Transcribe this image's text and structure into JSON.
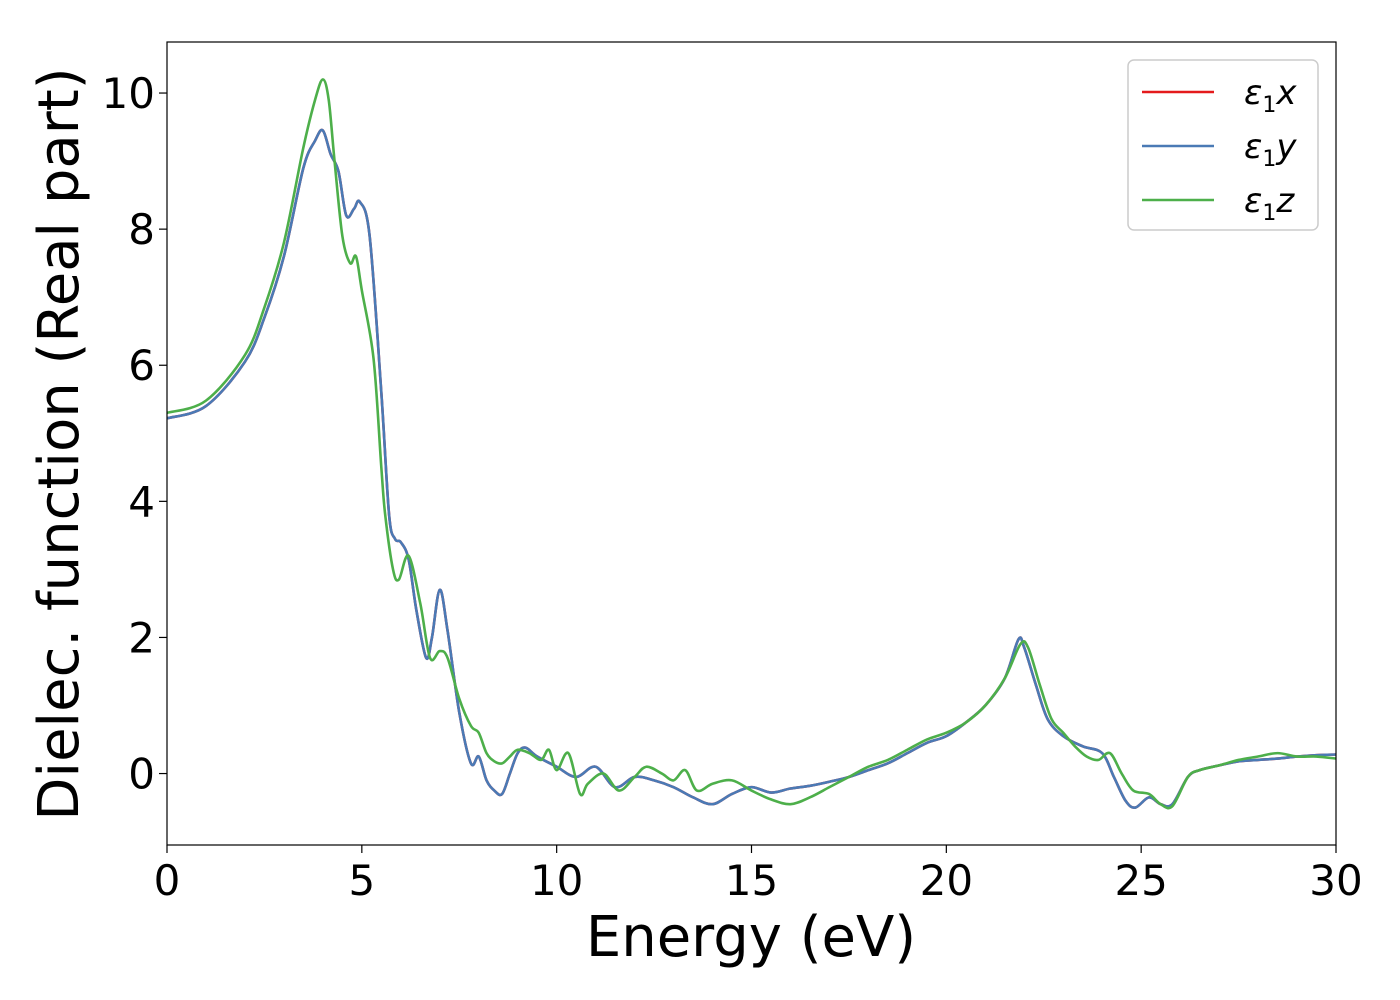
{
  "chart_data": {
    "type": "line",
    "xlabel": "Energy (eV)",
    "ylabel": "Dielec. function (Real part)",
    "xlim": [
      0,
      30
    ],
    "ylim": [
      -1.05,
      10.75
    ],
    "xticks": [
      0,
      5,
      10,
      15,
      20,
      25,
      30
    ],
    "yticks": [
      0,
      2,
      4,
      6,
      8,
      10
    ],
    "grid": false,
    "legend_position": "top-right",
    "series": [
      {
        "name": "ε1x",
        "legend_base": "ε",
        "legend_sub": "1",
        "legend_var": "x",
        "color": "#e41a1c",
        "x": [
          0,
          1,
          2,
          2.5,
          3,
          3.5,
          3.8,
          4.0,
          4.2,
          4.4,
          4.6,
          4.8,
          4.95,
          5.2,
          5.5,
          5.7,
          5.85,
          6.0,
          6.2,
          6.4,
          6.65,
          6.8,
          7.0,
          7.2,
          7.5,
          7.8,
          8.0,
          8.2,
          8.4,
          8.6,
          8.8,
          9.0,
          9.2,
          9.5,
          10.0,
          10.5,
          11.0,
          11.5,
          12.0,
          12.5,
          13.0,
          13.5,
          14.0,
          14.5,
          15.0,
          15.5,
          16.0,
          16.5,
          17.0,
          17.5,
          18.0,
          18.5,
          19.0,
          19.5,
          20.0,
          20.5,
          21.0,
          21.5,
          21.85,
          22.0,
          22.3,
          22.6,
          23.0,
          23.5,
          24.0,
          24.3,
          24.6,
          24.85,
          25.2,
          25.5,
          25.8,
          26.2,
          26.5,
          27.0,
          27.5,
          28.0,
          28.5,
          29.0,
          29.5,
          30.0
        ],
        "y": [
          5.22,
          5.4,
          6.05,
          6.7,
          7.6,
          8.9,
          9.3,
          9.45,
          9.1,
          8.85,
          8.2,
          8.3,
          8.4,
          7.9,
          5.6,
          3.8,
          3.45,
          3.4,
          3.15,
          2.4,
          1.7,
          2.0,
          2.7,
          2.1,
          0.9,
          0.15,
          0.25,
          -0.1,
          -0.25,
          -0.3,
          0.0,
          0.3,
          0.38,
          0.25,
          0.1,
          -0.05,
          0.1,
          -0.2,
          -0.05,
          -0.1,
          -0.2,
          -0.35,
          -0.45,
          -0.3,
          -0.2,
          -0.28,
          -0.22,
          -0.18,
          -0.12,
          -0.05,
          0.05,
          0.15,
          0.3,
          0.45,
          0.55,
          0.75,
          1.0,
          1.4,
          1.97,
          1.85,
          1.3,
          0.8,
          0.55,
          0.4,
          0.3,
          -0.05,
          -0.4,
          -0.5,
          -0.35,
          -0.45,
          -0.45,
          -0.05,
          0.05,
          0.12,
          0.18,
          0.2,
          0.22,
          0.25,
          0.27,
          0.28
        ]
      },
      {
        "name": "ε1y",
        "legend_base": "ε",
        "legend_sub": "1",
        "legend_var": "y",
        "color": "#4a7ab5",
        "x": [
          0,
          1,
          2,
          2.5,
          3,
          3.5,
          3.8,
          4.0,
          4.2,
          4.4,
          4.6,
          4.8,
          4.95,
          5.2,
          5.5,
          5.7,
          5.85,
          6.0,
          6.2,
          6.4,
          6.65,
          6.8,
          7.0,
          7.2,
          7.5,
          7.8,
          8.0,
          8.2,
          8.4,
          8.6,
          8.8,
          9.0,
          9.2,
          9.5,
          10.0,
          10.5,
          11.0,
          11.5,
          12.0,
          12.5,
          13.0,
          13.5,
          14.0,
          14.5,
          15.0,
          15.5,
          16.0,
          16.5,
          17.0,
          17.5,
          18.0,
          18.5,
          19.0,
          19.5,
          20.0,
          20.5,
          21.0,
          21.5,
          21.85,
          22.0,
          22.3,
          22.6,
          23.0,
          23.5,
          24.0,
          24.3,
          24.6,
          24.85,
          25.2,
          25.5,
          25.8,
          26.2,
          26.5,
          27.0,
          27.5,
          28.0,
          28.5,
          29.0,
          29.5,
          30.0
        ],
        "y": [
          5.22,
          5.4,
          6.05,
          6.7,
          7.6,
          8.9,
          9.3,
          9.45,
          9.1,
          8.85,
          8.2,
          8.3,
          8.4,
          7.9,
          5.6,
          3.8,
          3.45,
          3.4,
          3.15,
          2.4,
          1.7,
          2.0,
          2.7,
          2.1,
          0.9,
          0.15,
          0.25,
          -0.1,
          -0.25,
          -0.3,
          0.0,
          0.3,
          0.38,
          0.25,
          0.1,
          -0.05,
          0.1,
          -0.2,
          -0.05,
          -0.1,
          -0.2,
          -0.35,
          -0.45,
          -0.3,
          -0.2,
          -0.28,
          -0.22,
          -0.18,
          -0.12,
          -0.05,
          0.05,
          0.15,
          0.3,
          0.45,
          0.55,
          0.75,
          1.0,
          1.4,
          1.97,
          1.85,
          1.3,
          0.8,
          0.55,
          0.4,
          0.3,
          -0.05,
          -0.4,
          -0.5,
          -0.35,
          -0.45,
          -0.45,
          -0.05,
          0.05,
          0.12,
          0.18,
          0.2,
          0.22,
          0.25,
          0.27,
          0.28
        ]
      },
      {
        "name": "ε1z",
        "legend_base": "ε",
        "legend_sub": "1",
        "legend_var": "z",
        "color": "#4daf4a",
        "x": [
          0,
          1,
          2,
          2.5,
          3,
          3.5,
          3.8,
          4.0,
          4.15,
          4.3,
          4.5,
          4.7,
          4.85,
          5.0,
          5.3,
          5.5,
          5.6,
          5.8,
          5.95,
          6.2,
          6.5,
          6.75,
          7.0,
          7.2,
          7.5,
          7.8,
          8.0,
          8.2,
          8.4,
          8.6,
          8.8,
          9.0,
          9.3,
          9.6,
          9.8,
          10.0,
          10.3,
          10.6,
          10.8,
          11.2,
          11.6,
          12.0,
          12.3,
          12.7,
          13.0,
          13.3,
          13.6,
          14.0,
          14.5,
          15.0,
          15.5,
          16.0,
          16.5,
          17.0,
          17.5,
          18.0,
          18.5,
          19.0,
          19.5,
          20.0,
          20.5,
          21.0,
          21.5,
          21.9,
          22.1,
          22.4,
          22.7,
          23.0,
          23.3,
          23.6,
          23.9,
          24.2,
          24.5,
          24.8,
          25.2,
          25.5,
          25.8,
          26.2,
          26.5,
          27.0,
          27.5,
          28.0,
          28.5,
          29.0,
          29.5,
          30.0
        ],
        "y": [
          5.3,
          5.48,
          6.15,
          6.85,
          7.8,
          9.2,
          9.9,
          10.2,
          9.9,
          9.0,
          7.9,
          7.5,
          7.6,
          7.1,
          6.1,
          4.5,
          3.8,
          3.0,
          2.85,
          3.2,
          2.5,
          1.7,
          1.8,
          1.7,
          1.1,
          0.7,
          0.6,
          0.3,
          0.18,
          0.15,
          0.25,
          0.35,
          0.3,
          0.2,
          0.35,
          0.05,
          0.3,
          -0.3,
          -0.15,
          0.0,
          -0.25,
          -0.05,
          0.1,
          0.0,
          -0.1,
          0.05,
          -0.25,
          -0.15,
          -0.1,
          -0.25,
          -0.38,
          -0.45,
          -0.35,
          -0.2,
          -0.05,
          0.1,
          0.2,
          0.35,
          0.5,
          0.6,
          0.75,
          1.0,
          1.4,
          1.9,
          1.85,
          1.3,
          0.8,
          0.6,
          0.4,
          0.25,
          0.2,
          0.3,
          0.0,
          -0.25,
          -0.3,
          -0.45,
          -0.48,
          -0.05,
          0.05,
          0.12,
          0.2,
          0.25,
          0.3,
          0.25,
          0.25,
          0.22
        ]
      }
    ]
  }
}
